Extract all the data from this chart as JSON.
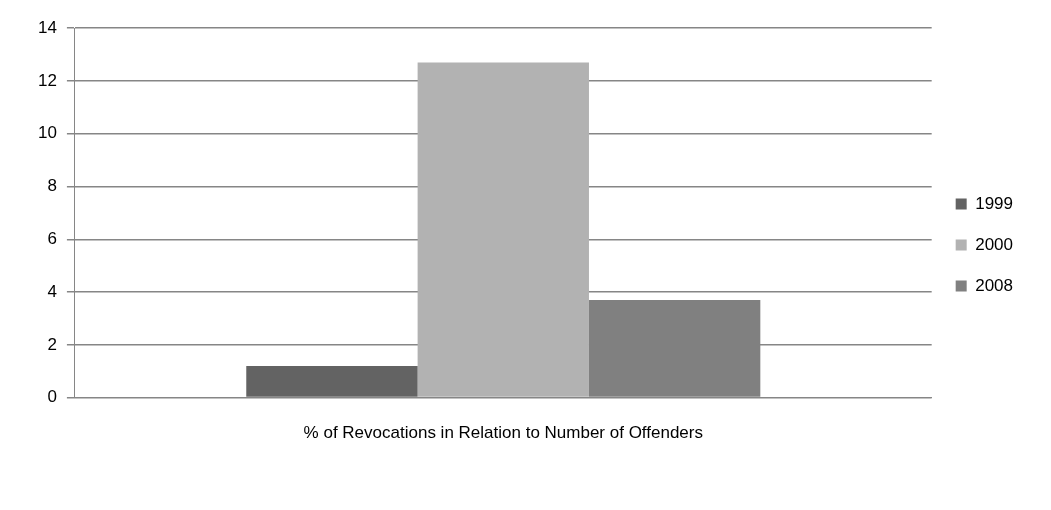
{
  "chart_data": {
    "type": "bar",
    "categories": [
      "% of Revocations in Relation to Number of Offenders"
    ],
    "series": [
      {
        "name": "1999",
        "color": "#636363",
        "values": [
          1.2
        ]
      },
      {
        "name": "2000",
        "color": "#b2b2b2",
        "values": [
          12.7
        ]
      },
      {
        "name": "2008",
        "color": "#808080",
        "values": [
          3.7
        ]
      }
    ],
    "ylim": [
      0,
      14
    ],
    "yticks": [
      0,
      2,
      4,
      6,
      8,
      10,
      12,
      14
    ],
    "grid": "y",
    "legend": "right"
  }
}
